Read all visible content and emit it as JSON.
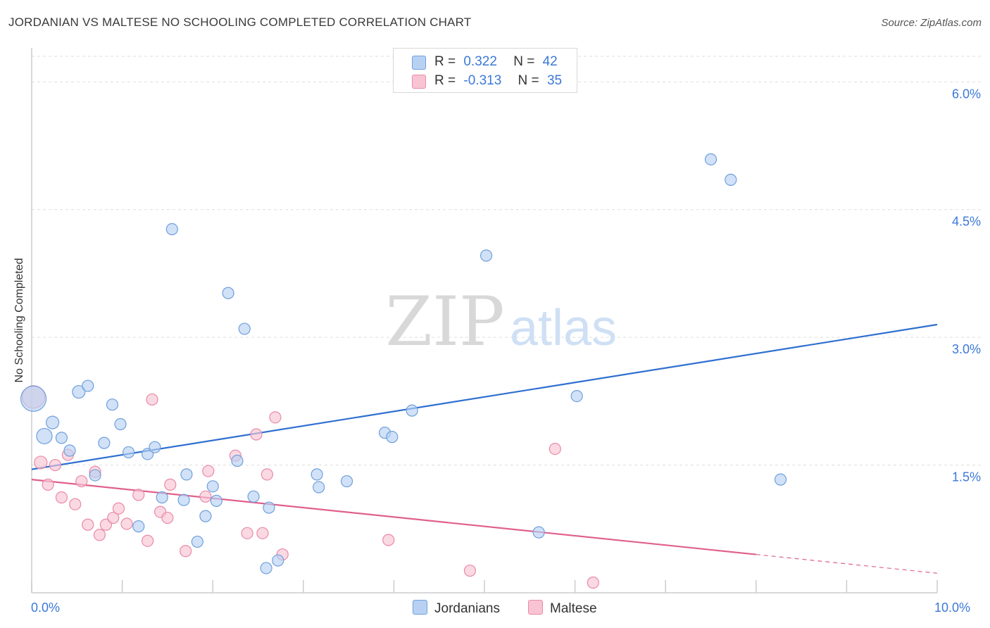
{
  "title": "JORDANIAN VS MALTESE NO SCHOOLING COMPLETED CORRELATION CHART",
  "source": "Source: ZipAtlas.com",
  "watermark": {
    "zip": "ZIP",
    "atlas": "atlas"
  },
  "legend": {
    "r_label": "R =",
    "n_label": "N =",
    "jordanians": {
      "r": "0.322",
      "n": "42"
    },
    "maltese": {
      "r": "-0.313",
      "n": "35"
    }
  },
  "bottom_legend": {
    "jordanians": "Jordanians",
    "maltese": "Maltese"
  },
  "colors": {
    "blue_fill": "#b8d1f3",
    "blue_stroke": "#6fa0dc",
    "blue_line": "#2f6fd0",
    "pink_fill": "#f8c4d4",
    "pink_stroke": "#e98aa8",
    "pink_line": "#e0608d",
    "tick_text": "#3c78d8",
    "grid": "#dddddd"
  },
  "chart_data": {
    "type": "scatter",
    "title": "JORDANIAN VS MALTESE NO SCHOOLING COMPLETED CORRELATION CHART",
    "xlabel": "",
    "ylabel": "No Schooling Completed",
    "xlim": [
      0,
      10
    ],
    "ylim": [
      0,
      6.3
    ],
    "x_tick_labels": [
      "0.0%",
      "10.0%"
    ],
    "y_ticks": [
      1.5,
      3.0,
      4.5,
      6.0
    ],
    "y_tick_labels": [
      "1.5%",
      "3.0%",
      "4.5%",
      "6.0%"
    ],
    "legend_position": "bottom-center",
    "series": [
      {
        "name": "Jordanians",
        "points": [
          [
            0.02,
            2.28,
            18
          ],
          [
            0.14,
            1.84,
            11
          ],
          [
            0.23,
            2.0,
            9
          ],
          [
            0.33,
            1.82,
            8
          ],
          [
            0.42,
            1.67,
            8
          ],
          [
            0.52,
            2.36,
            9
          ],
          [
            0.62,
            2.43,
            8
          ],
          [
            0.7,
            1.38,
            8
          ],
          [
            0.8,
            1.76,
            8
          ],
          [
            0.89,
            2.21,
            8
          ],
          [
            0.98,
            1.98,
            8
          ],
          [
            1.07,
            1.65,
            8
          ],
          [
            1.18,
            0.78,
            8
          ],
          [
            1.28,
            1.63,
            8
          ],
          [
            1.36,
            1.71,
            8
          ],
          [
            1.44,
            1.12,
            8
          ],
          [
            1.55,
            4.27,
            8
          ],
          [
            1.68,
            1.09,
            8
          ],
          [
            1.71,
            1.39,
            8
          ],
          [
            1.83,
            0.6,
            8
          ],
          [
            1.92,
            0.9,
            8
          ],
          [
            2.0,
            1.25,
            8
          ],
          [
            2.04,
            1.08,
            8
          ],
          [
            2.17,
            3.52,
            8
          ],
          [
            2.27,
            1.55,
            8
          ],
          [
            2.35,
            3.1,
            8
          ],
          [
            2.45,
            1.13,
            8
          ],
          [
            2.59,
            0.29,
            8
          ],
          [
            2.62,
            1.0,
            8
          ],
          [
            2.72,
            0.38,
            8
          ],
          [
            3.15,
            1.39,
            8
          ],
          [
            3.17,
            1.24,
            8
          ],
          [
            3.48,
            1.31,
            8
          ],
          [
            3.9,
            1.88,
            8
          ],
          [
            3.98,
            1.83,
            8
          ],
          [
            4.2,
            2.14,
            8
          ],
          [
            5.02,
            3.96,
            8
          ],
          [
            5.6,
            0.71,
            8
          ],
          [
            6.02,
            2.31,
            8
          ],
          [
            7.5,
            5.09,
            8
          ],
          [
            7.72,
            4.85,
            8
          ],
          [
            8.27,
            1.33,
            8
          ]
        ],
        "trend": {
          "x": [
            0,
            10
          ],
          "y": [
            1.45,
            3.15
          ]
        }
      },
      {
        "name": "Maltese",
        "points": [
          [
            0.02,
            2.3,
            16
          ],
          [
            0.1,
            1.53,
            9
          ],
          [
            0.18,
            1.27,
            8
          ],
          [
            0.26,
            1.5,
            8
          ],
          [
            0.33,
            1.12,
            8
          ],
          [
            0.4,
            1.62,
            8
          ],
          [
            0.48,
            1.04,
            8
          ],
          [
            0.55,
            1.31,
            8
          ],
          [
            0.62,
            0.8,
            8
          ],
          [
            0.7,
            1.42,
            8
          ],
          [
            0.75,
            0.68,
            8
          ],
          [
            0.82,
            0.8,
            8
          ],
          [
            0.9,
            0.88,
            8
          ],
          [
            0.96,
            0.99,
            8
          ],
          [
            1.05,
            0.81,
            8
          ],
          [
            1.18,
            1.15,
            8
          ],
          [
            1.28,
            0.61,
            8
          ],
          [
            1.33,
            2.27,
            8
          ],
          [
            1.42,
            0.95,
            8
          ],
          [
            1.5,
            0.88,
            8
          ],
          [
            1.53,
            1.27,
            8
          ],
          [
            1.7,
            0.49,
            8
          ],
          [
            1.92,
            1.13,
            8
          ],
          [
            1.95,
            1.43,
            8
          ],
          [
            2.25,
            1.61,
            8
          ],
          [
            2.38,
            0.7,
            8
          ],
          [
            2.48,
            1.86,
            8
          ],
          [
            2.55,
            0.7,
            8
          ],
          [
            2.6,
            1.39,
            8
          ],
          [
            2.69,
            2.06,
            8
          ],
          [
            2.77,
            0.45,
            8
          ],
          [
            3.94,
            0.62,
            8
          ],
          [
            4.84,
            0.26,
            8
          ],
          [
            5.78,
            1.69,
            8
          ],
          [
            6.2,
            0.12,
            8
          ]
        ],
        "trend": {
          "x": [
            0,
            8.0
          ],
          "y": [
            1.33,
            0.45
          ]
        },
        "trend_dashed": {
          "x": [
            8.0,
            10
          ],
          "y": [
            0.45,
            0.23
          ]
        }
      }
    ]
  }
}
